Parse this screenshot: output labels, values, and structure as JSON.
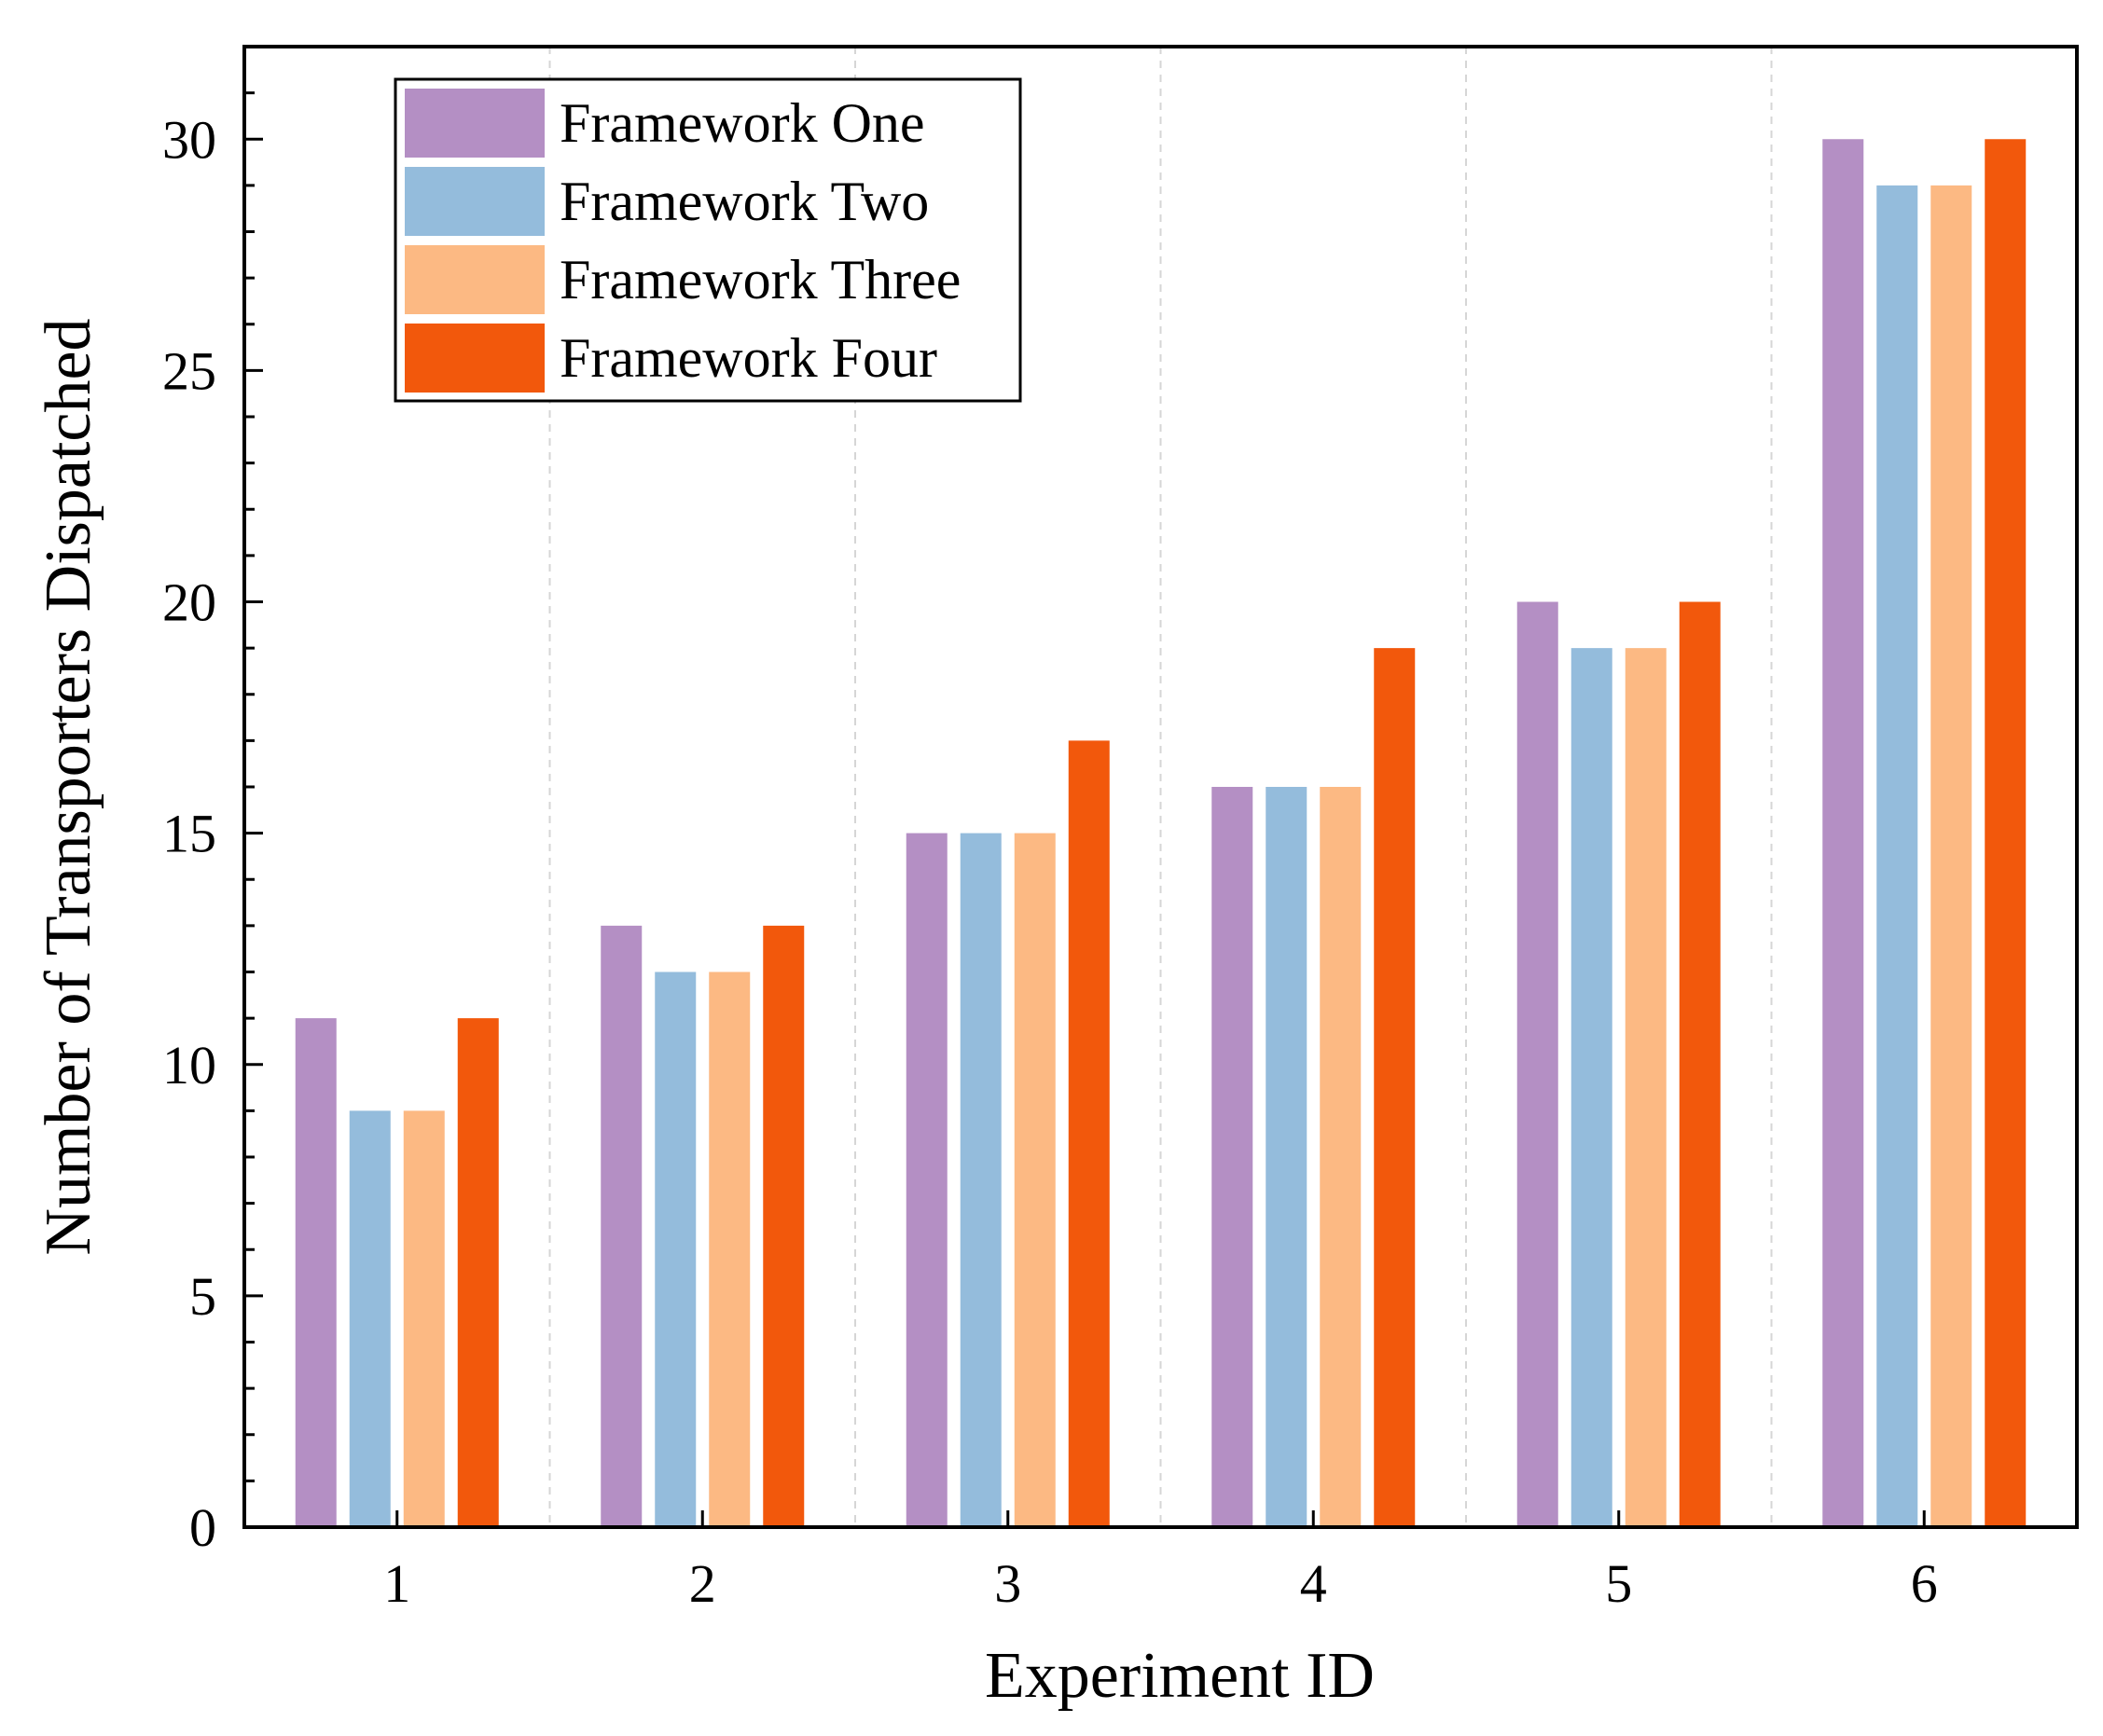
{
  "chart_data": {
    "type": "bar",
    "title": "",
    "xlabel": "Experiment ID",
    "ylabel": "Number of Transporters Dispatched",
    "categories": [
      "1",
      "2",
      "3",
      "4",
      "5",
      "6"
    ],
    "ylim": [
      0,
      32
    ],
    "yticks": [
      "0",
      "5",
      "10",
      "15",
      "20",
      "25",
      "30"
    ],
    "grid": "vertical dashed between groups",
    "legend_position": "top-left",
    "series": [
      {
        "name": "Framework One",
        "color": "#b48fc4",
        "values": [
          11,
          13,
          15,
          16,
          20,
          30
        ]
      },
      {
        "name": "Framework Two",
        "color": "#94bcdc",
        "values": [
          9,
          12,
          15,
          16,
          19,
          29
        ]
      },
      {
        "name": "Framework Three",
        "color": "#fcb983",
        "values": [
          9,
          12,
          15,
          16,
          19,
          29
        ]
      },
      {
        "name": "Framework Four",
        "color": "#f2580c",
        "values": [
          11,
          13,
          17,
          19,
          20,
          30
        ]
      }
    ]
  }
}
